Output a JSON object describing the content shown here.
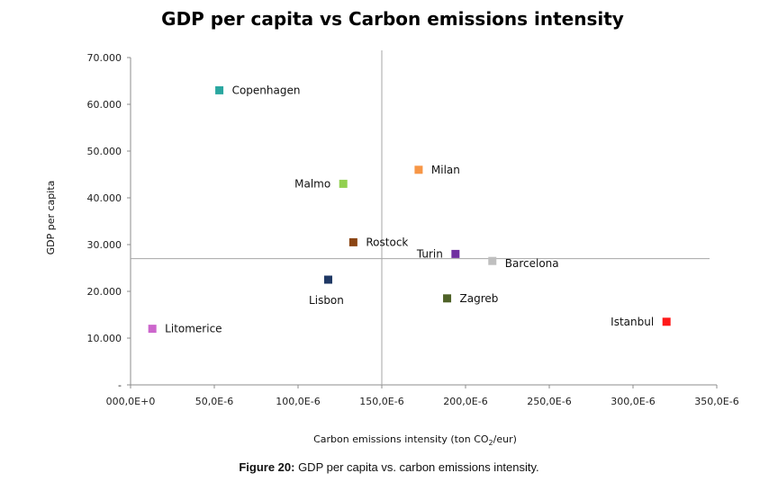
{
  "chart_data": {
    "type": "scatter",
    "title": "GDP per capita vs Carbon emissions intensity",
    "xlabel_main": "Carbon emissions intensity (ton CO",
    "xlabel_sub": "2",
    "xlabel_end": "/eur)",
    "ylabel": "GDP per capita",
    "xlim": [
      0,
      0.00035
    ],
    "ylim": [
      0,
      70000
    ],
    "x_ticks": [
      0,
      5e-05,
      0.0001,
      0.00015,
      0.0002,
      0.00025,
      0.0003,
      0.00035
    ],
    "x_tick_labels": [
      "000,0E+0",
      "50,0E-6",
      "100,0E-6",
      "150,0E-6",
      "200,0E-6",
      "250,0E-6",
      "300,0E-6",
      "350,0E-6"
    ],
    "y_ticks": [
      0,
      10000,
      20000,
      30000,
      40000,
      50000,
      60000,
      70000
    ],
    "y_tick_labels": [
      "-",
      "10.000",
      "20.000",
      "30.000",
      "40.000",
      "50.000",
      "60.000",
      "70.000"
    ],
    "reference_lines": {
      "x": 0.00015,
      "y": 27000
    },
    "grid": false,
    "points": [
      {
        "label": "Copenhagen",
        "x": 5.3e-05,
        "y": 63000,
        "color": "#2aa7a0",
        "label_side": "right"
      },
      {
        "label": "Milan",
        "x": 0.000172,
        "y": 46000,
        "color": "#f79646",
        "label_side": "right"
      },
      {
        "label": "Malmo",
        "x": 0.000127,
        "y": 43000,
        "color": "#92d050",
        "label_side": "left"
      },
      {
        "label": "Rostock",
        "x": 0.000133,
        "y": 30500,
        "color": "#8b4513",
        "label_side": "right"
      },
      {
        "label": "Turin",
        "x": 0.000194,
        "y": 28000,
        "color": "#7030a0",
        "label_side": "left"
      },
      {
        "label": "Barcelona",
        "x": 0.000216,
        "y": 26500,
        "color": "#bfbfbf",
        "label_side": "right-below"
      },
      {
        "label": "Lisbon",
        "x": 0.000118,
        "y": 22500,
        "color": "#1f3864",
        "label_side": "below"
      },
      {
        "label": "Zagreb",
        "x": 0.000189,
        "y": 18500,
        "color": "#4f6228",
        "label_side": "right"
      },
      {
        "label": "Istanbul",
        "x": 0.00032,
        "y": 13500,
        "color": "#ff1a1a",
        "label_side": "left"
      },
      {
        "label": "Litomerice",
        "x": 1.3e-05,
        "y": 12000,
        "color": "#cc66cc",
        "label_side": "right"
      }
    ]
  },
  "caption": {
    "label": "Figure 20:",
    "text": " GDP per capita vs. carbon emissions intensity."
  }
}
